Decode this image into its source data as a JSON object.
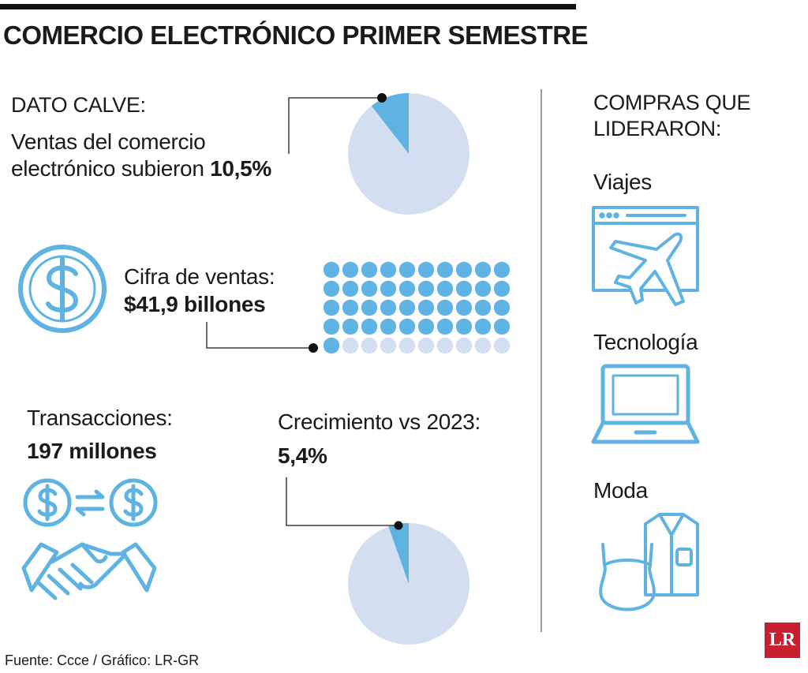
{
  "title": "COMERCIO ELECTRÓNICO PRIMER SEMESTRE",
  "dato": {
    "heading": "DATO CALVE:",
    "line1": "Ventas del comercio",
    "line2": "electrónico subieron",
    "value": "10,5%"
  },
  "cifra": {
    "label": "Cifra de ventas:",
    "value": "$41,9 billones"
  },
  "transacciones": {
    "label": "Transacciones:",
    "value": "197 millones"
  },
  "crecimiento": {
    "label": "Crecimiento vs 2023:",
    "value": "5,4%"
  },
  "compras": {
    "heading_line1": "COMPRAS QUE",
    "heading_line2": "LIDERARON:",
    "items": [
      "Viajes",
      "Tecnología",
      "Moda"
    ]
  },
  "source": "Fuente: Ccce / Gráfico: LR-GR",
  "logo": "LR",
  "colors": {
    "accent": "#5fb3e3",
    "pale": "#d3dff0",
    "text": "#1a1a1a"
  },
  "icons": [
    "dollar-coin-icon",
    "money-exchange-icon",
    "handshake-icon",
    "travel-web-icon",
    "laptop-icon",
    "clothing-icon"
  ],
  "chart_data": [
    {
      "type": "pie",
      "labels": [
        "Ventas del comercio electrónico subieron",
        ""
      ],
      "values": [
        10.5,
        89.5
      ]
    },
    {
      "type": "waffle",
      "grid": [
        10,
        5
      ],
      "filled": 41,
      "total": 50
    },
    {
      "type": "pie",
      "labels": [
        "Crecimiento vs 2023",
        ""
      ],
      "values": [
        5.4,
        94.6
      ]
    }
  ]
}
